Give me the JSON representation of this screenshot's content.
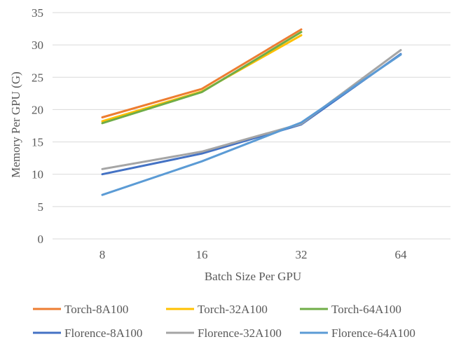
{
  "chart_data": {
    "type": "line",
    "title": "",
    "xlabel": "Batch Size Per GPU",
    "ylabel": "Memory Per GPU (G)",
    "categories": [
      "8",
      "16",
      "32",
      "64"
    ],
    "ylim": [
      0,
      35
    ],
    "yticks": [
      "0",
      "5",
      "10",
      "15",
      "20",
      "25",
      "30",
      "35"
    ],
    "grid": true,
    "legend_position": "bottom",
    "series": [
      {
        "name": "Torch-8A100",
        "color": "#ED7D31",
        "values": [
          18.8,
          23.2,
          32.4,
          null
        ]
      },
      {
        "name": "Torch-32A100",
        "color": "#FFC000",
        "values": [
          18.2,
          22.8,
          31.5,
          null
        ]
      },
      {
        "name": "Torch-64A100",
        "color": "#70AD47",
        "values": [
          17.9,
          22.7,
          32.0,
          null
        ]
      },
      {
        "name": "Florence-8A100",
        "color": "#4472C4",
        "values": [
          10.0,
          13.2,
          17.7,
          28.6
        ]
      },
      {
        "name": "Florence-32A100",
        "color": "#A5A5A5",
        "values": [
          10.8,
          13.5,
          17.8,
          29.2
        ]
      },
      {
        "name": "Florence-64A100",
        "color": "#5B9BD5",
        "values": [
          6.8,
          12.0,
          18.0,
          28.5
        ]
      }
    ]
  }
}
